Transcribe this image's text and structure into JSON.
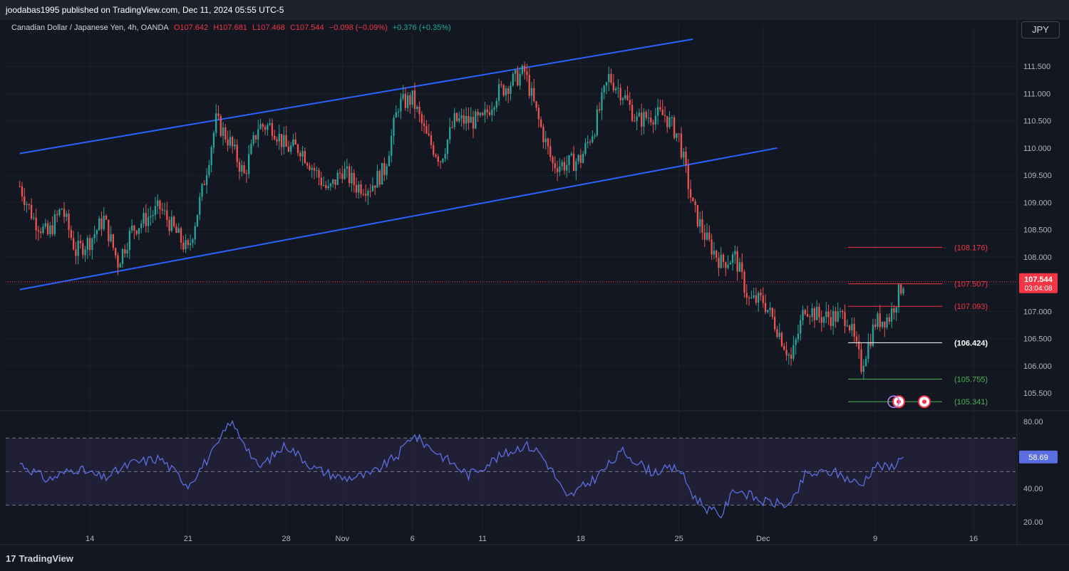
{
  "header": {
    "published_line": "joodabas1995 published on TradingView.com, Dec 11, 2024 05:55 UTC-5",
    "symbol": "Canadian Dollar / Japanese Yen, 4h, OANDA",
    "open": "O107.642",
    "high": "H107.681",
    "low": "L107.468",
    "close": "C107.544",
    "change": "−0.098 (−0.09%)",
    "ext_change": "+0.376 (+0.35%)"
  },
  "currency_button": "JPY",
  "brand": {
    "mark": "17",
    "name": "TradingView"
  },
  "colors": {
    "background": "#131722",
    "grid": "#1e222d",
    "up": "#26a69a",
    "down": "#ef5350",
    "channel": "#2962ff",
    "rsi_line": "#5b6ee1",
    "rsi_band": "#2a2444",
    "level_red": "#f23645",
    "level_white": "#ffffff",
    "level_green": "#4caf50"
  },
  "chart_data": {
    "type": "candlestick",
    "title": "Canadian Dollar / Japanese Yen, 4h, OANDA",
    "ylim": [
      105.2,
      112.0
    ],
    "y_ticks": [
      "111.500",
      "111.000",
      "110.500",
      "110.000",
      "109.500",
      "109.000",
      "108.500",
      "108.000",
      "107.500",
      "107.000",
      "106.500",
      "106.000",
      "105.500"
    ],
    "x_ticks": [
      "14",
      "21",
      "28",
      "Nov",
      "6",
      "11",
      "18",
      "25",
      "Dec",
      "9",
      "16"
    ],
    "price_path": [
      {
        "date": "Oct 9",
        "price": 109.3
      },
      {
        "date": "Oct 10",
        "price": 108.7
      },
      {
        "date": "Oct 11",
        "price": 108.4
      },
      {
        "date": "Oct 12",
        "price": 108.9
      },
      {
        "date": "Oct 13",
        "price": 108.1
      },
      {
        "date": "Oct 14",
        "price": 108.3
      },
      {
        "date": "Oct 15",
        "price": 108.7
      },
      {
        "date": "Oct 16",
        "price": 107.9
      },
      {
        "date": "Oct 17",
        "price": 108.5
      },
      {
        "date": "Oct 18",
        "price": 108.7
      },
      {
        "date": "Oct 19",
        "price": 108.9
      },
      {
        "date": "Oct 20",
        "price": 108.5
      },
      {
        "date": "Oct 21",
        "price": 108.1
      },
      {
        "date": "Oct 22",
        "price": 109.2
      },
      {
        "date": "Oct 23",
        "price": 110.5
      },
      {
        "date": "Oct 24",
        "price": 110.1
      },
      {
        "date": "Oct 25",
        "price": 109.5
      },
      {
        "date": "Oct 26",
        "price": 110.4
      },
      {
        "date": "Oct 27",
        "price": 110.4
      },
      {
        "date": "Oct 28",
        "price": 110.0
      },
      {
        "date": "Oct 29",
        "price": 110.0
      },
      {
        "date": "Oct 30",
        "price": 109.6
      },
      {
        "date": "Oct 31",
        "price": 109.2
      },
      {
        "date": "Nov 1",
        "price": 109.6
      },
      {
        "date": "Nov 2",
        "price": 109.3
      },
      {
        "date": "Nov 3",
        "price": 109.3
      },
      {
        "date": "Nov 4",
        "price": 109.6
      },
      {
        "date": "Nov 5",
        "price": 110.8
      },
      {
        "date": "Nov 6",
        "price": 110.9
      },
      {
        "date": "Nov 7",
        "price": 110.2
      },
      {
        "date": "Nov 8",
        "price": 109.8
      },
      {
        "date": "Nov 9",
        "price": 110.5
      },
      {
        "date": "Nov 10",
        "price": 110.5
      },
      {
        "date": "Nov 11",
        "price": 110.5
      },
      {
        "date": "Nov 12",
        "price": 111.0
      },
      {
        "date": "Nov 13",
        "price": 111.2
      },
      {
        "date": "Nov 14",
        "price": 111.4
      },
      {
        "date": "Nov 15",
        "price": 110.5
      },
      {
        "date": "Nov 16",
        "price": 109.7
      },
      {
        "date": "Nov 17",
        "price": 109.7
      },
      {
        "date": "Nov 18",
        "price": 109.8
      },
      {
        "date": "Nov 19",
        "price": 110.4
      },
      {
        "date": "Nov 20",
        "price": 111.3
      },
      {
        "date": "Nov 21",
        "price": 111.0
      },
      {
        "date": "Nov 22",
        "price": 110.5
      },
      {
        "date": "Nov 23",
        "price": 110.6
      },
      {
        "date": "Nov 24",
        "price": 110.6
      },
      {
        "date": "Nov 25",
        "price": 110.2
      },
      {
        "date": "Nov 26",
        "price": 108.9
      },
      {
        "date": "Nov 27",
        "price": 108.3
      },
      {
        "date": "Nov 28",
        "price": 107.9
      },
      {
        "date": "Nov 29",
        "price": 108.0
      },
      {
        "date": "Nov 30",
        "price": 107.2
      },
      {
        "date": "Dec 1",
        "price": 107.2
      },
      {
        "date": "Dec 2",
        "price": 106.7
      },
      {
        "date": "Dec 3",
        "price": 106.1
      },
      {
        "date": "Dec 4",
        "price": 107.1
      },
      {
        "date": "Dec 5",
        "price": 106.9
      },
      {
        "date": "Dec 6",
        "price": 106.9
      },
      {
        "date": "Dec 7",
        "price": 106.9
      },
      {
        "date": "Dec 8",
        "price": 106.0
      },
      {
        "date": "Dec 9",
        "price": 106.8
      },
      {
        "date": "Dec 10",
        "price": 106.9
      },
      {
        "date": "Dec 11",
        "price": 107.544
      }
    ],
    "channel_lines": [
      {
        "name": "upper",
        "from": {
          "date": "Oct 9",
          "price": 109.9
        },
        "to": {
          "date": "Nov 26",
          "price": 112.0
        }
      },
      {
        "name": "lower",
        "from": {
          "date": "Oct 9",
          "price": 107.4
        },
        "to": {
          "date": "Dec 2",
          "price": 110.0
        }
      }
    ],
    "levels": [
      {
        "price": 108.176,
        "label": "(108.176)",
        "color": "red"
      },
      {
        "price": 107.507,
        "label": "(107.507)",
        "color": "red"
      },
      {
        "price": 107.093,
        "label": "(107.093)",
        "color": "red"
      },
      {
        "price": 106.424,
        "label": "(106.424)",
        "color": "white"
      },
      {
        "price": 105.755,
        "label": "(105.755)",
        "color": "green"
      },
      {
        "price": 105.341,
        "label": "(105.341)",
        "color": "green"
      }
    ],
    "last_price": {
      "value": "107.544",
      "countdown": "03:04:08"
    },
    "rsi": {
      "ylim": [
        17,
        85
      ],
      "y_ticks": [
        "80.00",
        "40.00",
        "20.00"
      ],
      "levels": [
        70,
        50,
        30
      ],
      "current": "58.69",
      "path": [
        {
          "date": "Oct 9",
          "value": 55
        },
        {
          "date": "Oct 11",
          "value": 45
        },
        {
          "date": "Oct 13",
          "value": 52
        },
        {
          "date": "Oct 15",
          "value": 46
        },
        {
          "date": "Oct 17",
          "value": 55
        },
        {
          "date": "Oct 19",
          "value": 58
        },
        {
          "date": "Oct 21",
          "value": 42
        },
        {
          "date": "Oct 23",
          "value": 64
        },
        {
          "date": "Oct 24",
          "value": 80
        },
        {
          "date": "Oct 25",
          "value": 68
        },
        {
          "date": "Oct 26",
          "value": 52
        },
        {
          "date": "Oct 28",
          "value": 66
        },
        {
          "date": "Oct 30",
          "value": 52
        },
        {
          "date": "Nov 1",
          "value": 46
        },
        {
          "date": "Nov 3",
          "value": 48
        },
        {
          "date": "Nov 5",
          "value": 60
        },
        {
          "date": "Nov 6",
          "value": 72
        },
        {
          "date": "Nov 8",
          "value": 60
        },
        {
          "date": "Nov 10",
          "value": 48
        },
        {
          "date": "Nov 12",
          "value": 58
        },
        {
          "date": "Nov 14",
          "value": 66
        },
        {
          "date": "Nov 15",
          "value": 62
        },
        {
          "date": "Nov 16",
          "value": 50
        },
        {
          "date": "Nov 17",
          "value": 34
        },
        {
          "date": "Nov 19",
          "value": 46
        },
        {
          "date": "Nov 21",
          "value": 62
        },
        {
          "date": "Nov 23",
          "value": 50
        },
        {
          "date": "Nov 25",
          "value": 52
        },
        {
          "date": "Nov 26",
          "value": 36
        },
        {
          "date": "Nov 27",
          "value": 28
        },
        {
          "date": "Nov 28",
          "value": 24
        },
        {
          "date": "Nov 29",
          "value": 40
        },
        {
          "date": "Dec 1",
          "value": 32
        },
        {
          "date": "Dec 3",
          "value": 30
        },
        {
          "date": "Dec 4",
          "value": 48
        },
        {
          "date": "Dec 6",
          "value": 50
        },
        {
          "date": "Dec 8",
          "value": 42
        },
        {
          "date": "Dec 9",
          "value": 54
        },
        {
          "date": "Dec 10",
          "value": 52
        },
        {
          "date": "Dec 11",
          "value": 58.69
        }
      ]
    }
  }
}
